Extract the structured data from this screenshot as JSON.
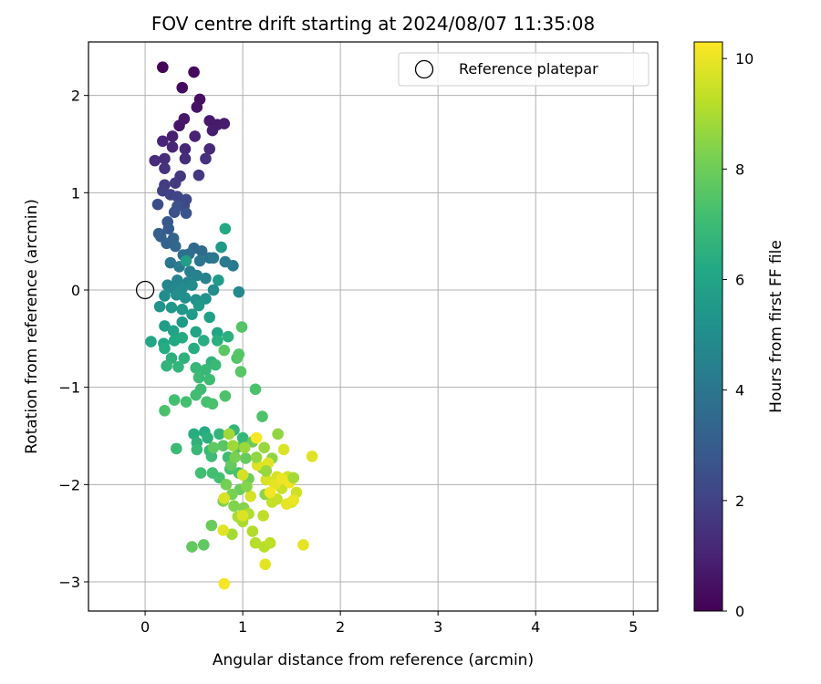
{
  "chart_data": {
    "type": "scatter",
    "title": "FOV centre drift starting at 2024/08/07 11:35:08",
    "xlabel": "Angular distance from reference (arcmin)",
    "ylabel": "Rotation from reference (arcmin)",
    "xlim": [
      -0.58,
      5.25
    ],
    "ylim": [
      -3.3,
      2.55
    ],
    "xticks": [
      0,
      1,
      2,
      3,
      4,
      5
    ],
    "xtick_labels": [
      "0",
      "1",
      "2",
      "3",
      "4",
      "5"
    ],
    "yticks": [
      -3,
      -2,
      -1,
      0,
      1,
      2
    ],
    "ytick_labels": [
      "−3",
      "−2",
      "−1",
      "0",
      "1",
      "2"
    ],
    "grid": true,
    "legend": {
      "position": "top-right",
      "entries": [
        "Reference platepar"
      ]
    },
    "reference_point": {
      "x": 0,
      "y": 0,
      "marker": "open-circle"
    },
    "colorbar": {
      "label": "Hours from first FF file",
      "colormap": "viridis",
      "range": [
        0,
        10.3
      ],
      "ticks": [
        0,
        2,
        4,
        6,
        8,
        10
      ],
      "tick_labels": [
        "0",
        "2",
        "4",
        "6",
        "8",
        "10"
      ]
    },
    "series": [
      {
        "columns": [
          "x",
          "y",
          "hours"
        ],
        "points": [
          [
            0.18,
            2.29,
            0.1
          ],
          [
            0.5,
            2.24,
            0.2
          ],
          [
            0.38,
            2.08,
            0.3
          ],
          [
            0.56,
            1.96,
            0.4
          ],
          [
            0.53,
            1.88,
            0.5
          ],
          [
            0.35,
            1.69,
            0.6
          ],
          [
            0.4,
            1.76,
            0.65
          ],
          [
            0.66,
            1.74,
            0.7
          ],
          [
            0.74,
            1.7,
            0.75
          ],
          [
            0.81,
            1.71,
            0.8
          ],
          [
            0.69,
            1.64,
            0.85
          ],
          [
            0.28,
            1.58,
            0.9
          ],
          [
            0.51,
            1.58,
            1.0
          ],
          [
            0.18,
            1.53,
            1.05
          ],
          [
            0.28,
            1.47,
            1.1
          ],
          [
            0.41,
            1.45,
            1.15
          ],
          [
            0.66,
            1.45,
            1.2
          ],
          [
            0.1,
            1.33,
            1.3
          ],
          [
            0.2,
            1.35,
            1.35
          ],
          [
            0.41,
            1.35,
            1.4
          ],
          [
            0.62,
            1.35,
            1.45
          ],
          [
            0.2,
            1.25,
            1.5
          ],
          [
            0.36,
            1.17,
            1.6
          ],
          [
            0.55,
            1.18,
            1.65
          ],
          [
            0.31,
            1.1,
            1.7
          ],
          [
            0.2,
            1.08,
            1.8
          ],
          [
            0.18,
            1.02,
            1.9
          ],
          [
            0.26,
            0.98,
            2.0
          ],
          [
            0.33,
            0.96,
            2.1
          ],
          [
            0.42,
            0.93,
            2.2
          ],
          [
            0.4,
            0.87,
            2.3
          ],
          [
            0.13,
            0.88,
            2.4
          ],
          [
            0.33,
            0.86,
            2.5
          ],
          [
            0.3,
            0.8,
            2.6
          ],
          [
            0.42,
            0.79,
            2.7
          ],
          [
            0.23,
            0.7,
            2.8
          ],
          [
            0.24,
            0.63,
            2.9
          ],
          [
            0.14,
            0.58,
            3.0
          ],
          [
            0.16,
            0.55,
            3.1
          ],
          [
            0.29,
            0.53,
            3.2
          ],
          [
            0.22,
            0.48,
            3.3
          ],
          [
            0.31,
            0.45,
            3.4
          ],
          [
            0.5,
            0.43,
            3.5
          ],
          [
            0.58,
            0.4,
            3.6
          ],
          [
            0.45,
            0.37,
            3.7
          ],
          [
            0.39,
            0.36,
            3.8
          ],
          [
            0.66,
            0.33,
            3.9
          ],
          [
            0.26,
            0.28,
            4.0
          ],
          [
            0.56,
            0.3,
            4.05
          ],
          [
            0.7,
            0.33,
            4.1
          ],
          [
            0.82,
            0.29,
            4.15
          ],
          [
            0.9,
            0.25,
            4.2
          ],
          [
            0.35,
            0.24,
            4.3
          ],
          [
            0.46,
            0.19,
            4.4
          ],
          [
            0.53,
            0.15,
            4.5
          ],
          [
            0.62,
            0.12,
            4.55
          ],
          [
            0.33,
            0.1,
            4.6
          ],
          [
            0.44,
            0.08,
            4.65
          ],
          [
            0.23,
            0.05,
            4.7
          ],
          [
            0.28,
            0.02,
            4.75
          ],
          [
            0.96,
            -0.02,
            4.8
          ],
          [
            0.38,
            0.02,
            4.85
          ],
          [
            0.48,
            0.05,
            4.9
          ],
          [
            0.7,
            0.0,
            4.95
          ],
          [
            0.2,
            -0.06,
            5.0
          ],
          [
            0.32,
            -0.05,
            5.05
          ],
          [
            0.41,
            -0.08,
            5.1
          ],
          [
            0.52,
            -0.1,
            5.15
          ],
          [
            0.62,
            -0.09,
            5.2
          ],
          [
            0.15,
            -0.17,
            5.3
          ],
          [
            0.27,
            -0.18,
            5.4
          ],
          [
            0.38,
            -0.2,
            5.45
          ],
          [
            0.55,
            -0.16,
            5.5
          ],
          [
            0.48,
            -0.25,
            5.55
          ],
          [
            0.38,
            -0.33,
            5.6
          ],
          [
            0.2,
            -0.37,
            5.7
          ],
          [
            0.66,
            -0.28,
            5.8
          ],
          [
            0.29,
            -0.42,
            5.9
          ],
          [
            0.52,
            -0.43,
            6.0
          ],
          [
            0.74,
            -0.44,
            6.05
          ],
          [
            0.06,
            -0.53,
            6.1
          ],
          [
            0.19,
            -0.55,
            6.15
          ],
          [
            0.3,
            -0.52,
            6.2
          ],
          [
            0.38,
            -0.49,
            6.25
          ],
          [
            0.2,
            -0.6,
            6.3
          ],
          [
            0.5,
            -0.6,
            6.35
          ],
          [
            0.6,
            -0.52,
            6.4
          ],
          [
            0.74,
            -0.52,
            6.45
          ],
          [
            0.85,
            -0.48,
            6.5
          ],
          [
            0.27,
            -0.7,
            6.55
          ],
          [
            0.4,
            -0.7,
            6.6
          ],
          [
            0.68,
            -0.74,
            6.65
          ],
          [
            0.22,
            -0.78,
            6.7
          ],
          [
            0.34,
            -0.79,
            6.75
          ],
          [
            0.52,
            -0.8,
            6.8
          ],
          [
            0.62,
            -0.82,
            6.85
          ],
          [
            0.72,
            -0.77,
            6.9
          ],
          [
            0.55,
            -0.9,
            6.95
          ],
          [
            0.66,
            -0.92,
            7.0
          ],
          [
            0.57,
            -1.02,
            7.05
          ],
          [
            0.52,
            -1.08,
            7.1
          ],
          [
            0.3,
            -1.13,
            7.15
          ],
          [
            0.42,
            -1.15,
            7.2
          ],
          [
            0.63,
            -1.15,
            7.25
          ],
          [
            0.69,
            -1.17,
            7.3
          ],
          [
            0.2,
            -1.24,
            7.35
          ],
          [
            0.82,
            -1.09,
            7.4
          ],
          [
            0.94,
            -0.7,
            7.45
          ],
          [
            0.99,
            -0.38,
            7.5
          ],
          [
            0.96,
            -0.66,
            7.55
          ],
          [
            0.98,
            -0.84,
            7.6
          ],
          [
            0.81,
            -0.62,
            7.65
          ],
          [
            0.82,
            0.63,
            6.2
          ],
          [
            0.78,
            0.44,
            5.5
          ],
          [
            0.75,
            0.1,
            5.6
          ],
          [
            0.42,
            0.3,
            5.7
          ],
          [
            0.61,
            -1.46,
            6.3
          ],
          [
            0.5,
            -1.48,
            6.4
          ],
          [
            0.64,
            -1.52,
            6.5
          ],
          [
            0.53,
            -1.57,
            6.6
          ],
          [
            0.76,
            -1.48,
            6.7
          ],
          [
            0.91,
            -1.44,
            6.75
          ],
          [
            1.0,
            -1.52,
            6.8
          ],
          [
            0.53,
            -1.64,
            6.85
          ],
          [
            0.66,
            -1.65,
            6.9
          ],
          [
            0.32,
            -1.63,
            6.95
          ],
          [
            0.68,
            -1.71,
            7.0
          ],
          [
            0.85,
            -1.72,
            7.05
          ],
          [
            0.57,
            -1.88,
            7.1
          ],
          [
            0.69,
            -1.88,
            7.15
          ],
          [
            0.76,
            -1.93,
            7.2
          ],
          [
            0.87,
            -1.84,
            7.25
          ],
          [
            0.96,
            -1.88,
            7.3
          ],
          [
            1.13,
            -1.02,
            7.35
          ],
          [
            1.2,
            -1.3,
            7.4
          ],
          [
            0.94,
            -1.62,
            7.5
          ],
          [
            0.8,
            -1.6,
            7.6
          ],
          [
            0.7,
            -1.62,
            7.7
          ],
          [
            0.88,
            -1.8,
            7.8
          ],
          [
            1.03,
            -1.73,
            7.85
          ],
          [
            1.1,
            -1.56,
            7.9
          ],
          [
            0.97,
            -2.05,
            7.95
          ],
          [
            1.06,
            -1.94,
            8.0
          ],
          [
            0.83,
            -2.0,
            8.1
          ],
          [
            0.89,
            -2.1,
            8.2
          ],
          [
            0.8,
            -2.17,
            8.3
          ],
          [
            0.91,
            -2.22,
            8.35
          ],
          [
            1.01,
            -2.24,
            8.4
          ],
          [
            1.2,
            -1.83,
            8.45
          ],
          [
            1.23,
            -2.1,
            8.5
          ],
          [
            1.3,
            -1.73,
            8.55
          ],
          [
            1.36,
            -1.48,
            8.6
          ],
          [
            1.22,
            -1.62,
            8.7
          ],
          [
            1.02,
            -1.62,
            8.75
          ],
          [
            0.9,
            -1.6,
            8.8
          ],
          [
            0.86,
            -1.48,
            8.85
          ],
          [
            0.68,
            -2.42,
            7.9
          ],
          [
            0.48,
            -2.64,
            7.8
          ],
          [
            0.6,
            -2.62,
            7.75
          ],
          [
            0.89,
            -2.51,
            8.9
          ],
          [
            0.95,
            -2.33,
            8.95
          ],
          [
            1.0,
            -2.38,
            9.0
          ],
          [
            1.06,
            -2.3,
            9.05
          ],
          [
            1.1,
            -2.48,
            9.1
          ],
          [
            1.13,
            -2.6,
            9.15
          ],
          [
            1.22,
            -2.64,
            9.2
          ],
          [
            1.28,
            -2.6,
            9.25
          ],
          [
            1.21,
            -2.32,
            9.3
          ],
          [
            1.3,
            -2.18,
            9.35
          ],
          [
            1.35,
            -2.15,
            9.4
          ],
          [
            1.4,
            -2.04,
            9.45
          ],
          [
            1.5,
            -2.18,
            9.5
          ],
          [
            1.55,
            -2.08,
            9.55
          ],
          [
            1.46,
            -1.92,
            9.6
          ],
          [
            1.35,
            -1.92,
            9.65
          ],
          [
            1.24,
            -1.95,
            9.7
          ],
          [
            1.42,
            -1.64,
            9.75
          ],
          [
            1.71,
            -1.71,
            9.8
          ],
          [
            1.23,
            -2.82,
            9.9
          ],
          [
            0.8,
            -2.47,
            9.85
          ],
          [
            0.81,
            -3.02,
            10.2
          ],
          [
            1.62,
            -2.62,
            9.9
          ],
          [
            1.0,
            -1.9,
            9.6
          ],
          [
            1.08,
            -2.12,
            9.65
          ],
          [
            0.81,
            -2.14,
            9.7
          ],
          [
            1.0,
            -2.32,
            9.75
          ],
          [
            1.15,
            -1.8,
            9.8
          ],
          [
            1.26,
            -1.78,
            9.85
          ],
          [
            1.33,
            -2.0,
            9.9
          ],
          [
            1.45,
            -2.2,
            9.95
          ],
          [
            1.52,
            -2.16,
            10.0
          ],
          [
            1.4,
            -1.94,
            10.05
          ],
          [
            1.48,
            -1.98,
            10.1
          ],
          [
            1.28,
            -2.08,
            10.15
          ],
          [
            1.14,
            -1.52,
            10.2
          ],
          [
            1.04,
            -2.02,
            8.4
          ],
          [
            0.92,
            -1.72,
            8.2
          ],
          [
            1.14,
            -1.72,
            8.6
          ],
          [
            1.24,
            -1.86,
            8.7
          ],
          [
            1.52,
            -1.93,
            8.9
          ]
        ]
      }
    ]
  }
}
